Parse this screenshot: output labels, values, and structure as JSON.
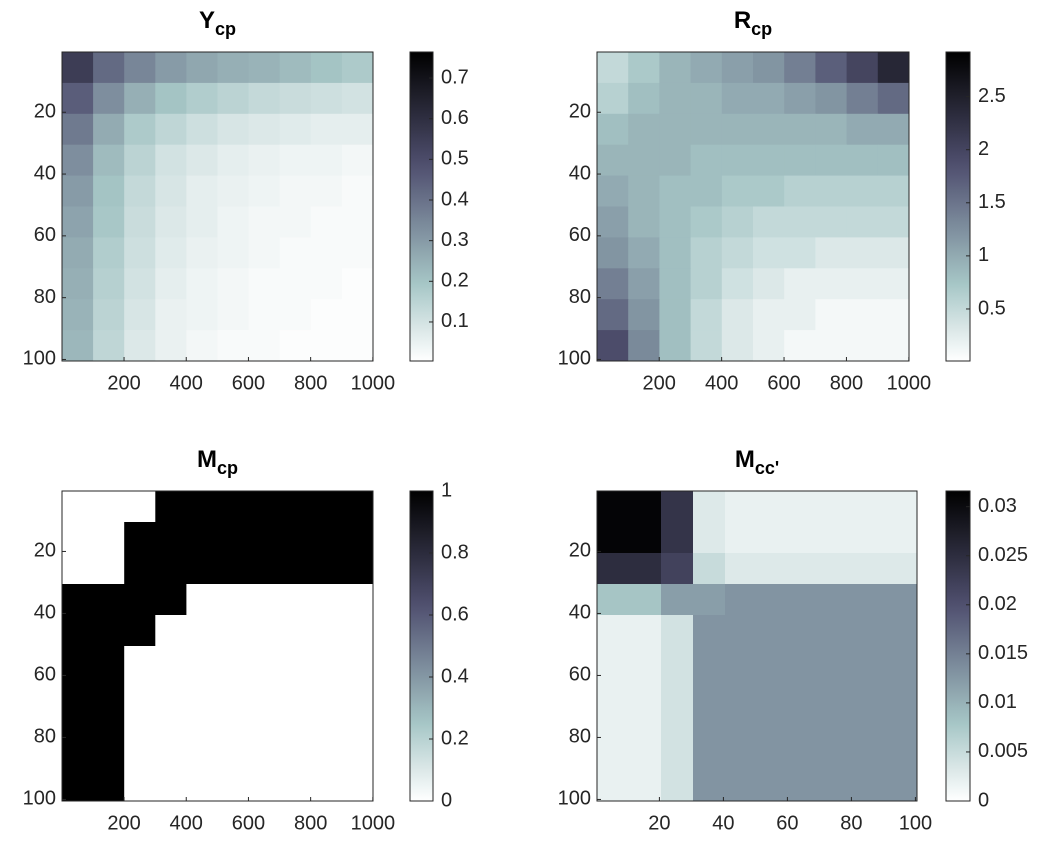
{
  "chart_data": [
    {
      "type": "heatmap",
      "title": "Y",
      "title_sub": "cp",
      "colormap": "bone_r",
      "yreverse": true,
      "xlim": [
        0.5,
        1000.5
      ],
      "ylim": [
        0.5,
        100.5
      ],
      "xticks": [
        200,
        400,
        600,
        800,
        1000
      ],
      "yticks": [
        20,
        40,
        60,
        80,
        100
      ],
      "clim": [
        0.004,
        0.764
      ],
      "cticks": [
        0.1,
        0.2,
        0.3,
        0.4,
        0.5,
        0.6,
        0.7
      ],
      "z": [
        [
          0.55,
          0.42,
          0.35,
          0.3,
          0.27,
          0.25,
          0.24,
          0.22,
          0.2,
          0.18
        ],
        [
          0.45,
          0.33,
          0.25,
          0.2,
          0.17,
          0.15,
          0.13,
          0.12,
          0.11,
          0.1
        ],
        [
          0.38,
          0.26,
          0.18,
          0.14,
          0.11,
          0.09,
          0.08,
          0.07,
          0.06,
          0.06
        ],
        [
          0.33,
          0.22,
          0.15,
          0.1,
          0.08,
          0.06,
          0.05,
          0.04,
          0.04,
          0.03
        ],
        [
          0.3,
          0.2,
          0.13,
          0.09,
          0.06,
          0.05,
          0.04,
          0.03,
          0.03,
          0.02
        ],
        [
          0.28,
          0.19,
          0.12,
          0.08,
          0.06,
          0.04,
          0.03,
          0.03,
          0.02,
          0.02
        ],
        [
          0.26,
          0.17,
          0.11,
          0.07,
          0.05,
          0.04,
          0.03,
          0.02,
          0.02,
          0.02
        ],
        [
          0.25,
          0.16,
          0.1,
          0.06,
          0.04,
          0.03,
          0.02,
          0.02,
          0.02,
          0.01
        ],
        [
          0.24,
          0.15,
          0.09,
          0.05,
          0.04,
          0.03,
          0.02,
          0.02,
          0.01,
          0.01
        ],
        [
          0.23,
          0.14,
          0.08,
          0.05,
          0.03,
          0.02,
          0.02,
          0.01,
          0.01,
          0.01
        ]
      ]
    },
    {
      "type": "heatmap",
      "title": "R",
      "title_sub": "cp",
      "colormap": "bone_r",
      "yreverse": true,
      "xlim": [
        0.5,
        1000.5
      ],
      "ylim": [
        0.5,
        100.5
      ],
      "xticks": [
        200,
        400,
        600,
        800,
        1000
      ],
      "yticks": [
        20,
        40,
        60,
        80,
        100
      ],
      "clim": [
        0.01,
        2.92
      ],
      "cticks": [
        0.5,
        1,
        1.5,
        2,
        2.5
      ],
      "z": [
        [
          0.5,
          0.7,
          0.9,
          1.0,
          1.1,
          1.2,
          1.4,
          1.7,
          2.0,
          2.4
        ],
        [
          0.6,
          0.8,
          0.9,
          0.9,
          1.0,
          1.0,
          1.1,
          1.2,
          1.4,
          1.6
        ],
        [
          0.8,
          0.9,
          0.9,
          0.9,
          0.9,
          0.9,
          0.9,
          0.9,
          1.0,
          1.0
        ],
        [
          0.9,
          0.9,
          0.9,
          0.8,
          0.8,
          0.8,
          0.8,
          0.8,
          0.8,
          0.8
        ],
        [
          1.0,
          0.9,
          0.8,
          0.8,
          0.7,
          0.7,
          0.6,
          0.6,
          0.6,
          0.6
        ],
        [
          1.1,
          0.9,
          0.8,
          0.7,
          0.6,
          0.5,
          0.5,
          0.5,
          0.5,
          0.5
        ],
        [
          1.2,
          1.0,
          0.8,
          0.6,
          0.5,
          0.4,
          0.4,
          0.3,
          0.3,
          0.3
        ],
        [
          1.4,
          1.1,
          0.8,
          0.6,
          0.4,
          0.3,
          0.2,
          0.2,
          0.2,
          0.2
        ],
        [
          1.6,
          1.2,
          0.8,
          0.5,
          0.3,
          0.2,
          0.2,
          0.1,
          0.1,
          0.1
        ],
        [
          1.9,
          1.3,
          0.8,
          0.5,
          0.3,
          0.2,
          0.1,
          0.1,
          0.1,
          0.1
        ]
      ]
    },
    {
      "type": "heatmap",
      "title": "M",
      "title_sub": "cp",
      "colormap": "bone_r",
      "yreverse": true,
      "xlim": [
        0.5,
        1000.5
      ],
      "ylim": [
        0.5,
        100.5
      ],
      "xticks": [
        200,
        400,
        600,
        800,
        1000
      ],
      "yticks": [
        20,
        40,
        60,
        80,
        100
      ],
      "clim": [
        0,
        1
      ],
      "cticks": [
        0,
        0.2,
        0.4,
        0.6,
        0.8,
        1
      ],
      "z": [
        [
          0,
          0,
          0,
          1,
          1,
          1,
          1,
          1,
          1,
          1
        ],
        [
          0,
          0,
          1,
          1,
          1,
          1,
          1,
          1,
          1,
          1
        ],
        [
          0,
          0,
          1,
          1,
          1,
          1,
          1,
          1,
          1,
          1
        ],
        [
          1,
          1,
          1,
          1,
          0,
          0,
          0,
          0,
          0,
          0
        ],
        [
          1,
          1,
          1,
          0,
          0,
          0,
          0,
          0,
          0,
          0
        ],
        [
          1,
          1,
          0,
          0,
          0,
          0,
          0,
          0,
          0,
          0
        ],
        [
          1,
          1,
          0,
          0,
          0,
          0,
          0,
          0,
          0,
          0
        ],
        [
          1,
          1,
          0,
          0,
          0,
          0,
          0,
          0,
          0,
          0
        ],
        [
          1,
          1,
          0,
          0,
          0,
          0,
          0,
          0,
          0,
          0
        ],
        [
          1,
          1,
          0,
          0,
          0,
          0,
          0,
          0,
          0,
          0
        ]
      ]
    },
    {
      "type": "heatmap",
      "title": "M",
      "title_sub": "cc'",
      "colormap": "bone_r",
      "yreverse": true,
      "xlim": [
        0.5,
        100.5
      ],
      "ylim": [
        0.5,
        100.5
      ],
      "xticks": [
        20,
        40,
        60,
        80,
        100
      ],
      "yticks": [
        20,
        40,
        60,
        80,
        100
      ],
      "clim": [
        0,
        0.0316
      ],
      "cticks": [
        0,
        0.005,
        0.01,
        0.015,
        0.02,
        0.025,
        0.03
      ],
      "z": [
        [
          0.031,
          0.031,
          0.024,
          0.003,
          0.002,
          0.002,
          0.002,
          0.002,
          0.002,
          0.002
        ],
        [
          0.031,
          0.031,
          0.024,
          0.003,
          0.002,
          0.002,
          0.002,
          0.002,
          0.002,
          0.002
        ],
        [
          0.025,
          0.025,
          0.022,
          0.005,
          0.003,
          0.003,
          0.003,
          0.003,
          0.003,
          0.003
        ],
        [
          0.008,
          0.008,
          0.012,
          0.012,
          0.013,
          0.013,
          0.013,
          0.013,
          0.013,
          0.013
        ],
        [
          0.002,
          0.002,
          0.004,
          0.013,
          0.013,
          0.013,
          0.013,
          0.013,
          0.013,
          0.013
        ],
        [
          0.002,
          0.002,
          0.004,
          0.013,
          0.013,
          0.013,
          0.013,
          0.013,
          0.013,
          0.013
        ],
        [
          0.002,
          0.002,
          0.004,
          0.013,
          0.013,
          0.013,
          0.013,
          0.013,
          0.013,
          0.013
        ],
        [
          0.002,
          0.002,
          0.004,
          0.013,
          0.013,
          0.013,
          0.013,
          0.013,
          0.013,
          0.013
        ],
        [
          0.002,
          0.002,
          0.004,
          0.013,
          0.013,
          0.013,
          0.013,
          0.013,
          0.013,
          0.013
        ],
        [
          0.002,
          0.002,
          0.004,
          0.013,
          0.013,
          0.013,
          0.013,
          0.013,
          0.013,
          0.013
        ]
      ]
    }
  ]
}
